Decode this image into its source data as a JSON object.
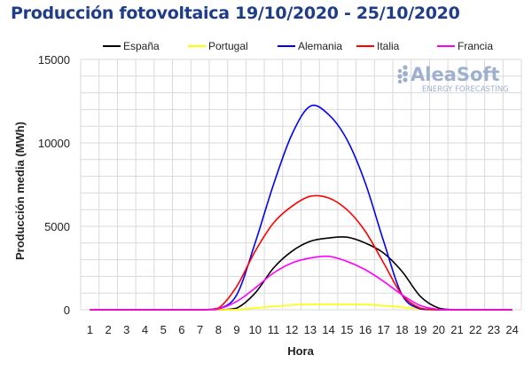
{
  "chart_data": {
    "type": "line",
    "title": "Producción fotovoltaica 19/10/2020 - 25/10/2020",
    "xlabel": "Hora",
    "ylabel": "Producción media (MWh)",
    "x": [
      1,
      2,
      3,
      4,
      5,
      6,
      7,
      8,
      9,
      10,
      11,
      12,
      13,
      14,
      15,
      16,
      17,
      18,
      19,
      20,
      21,
      22,
      23,
      24
    ],
    "ylim": [
      0,
      15000
    ],
    "yticks": [
      0,
      5000,
      10000,
      15000
    ],
    "grid": true,
    "legend": "top",
    "series": [
      {
        "name": "España",
        "color": "#000000",
        "values": [
          0,
          0,
          0,
          0,
          0,
          0,
          0,
          0,
          100,
          1000,
          2500,
          3500,
          4100,
          4300,
          4350,
          4000,
          3400,
          2300,
          800,
          100,
          0,
          0,
          0,
          0
        ]
      },
      {
        "name": "Portugal",
        "color": "#ffff00",
        "values": [
          0,
          0,
          0,
          0,
          0,
          0,
          0,
          0,
          10,
          100,
          200,
          280,
          320,
          330,
          320,
          300,
          250,
          150,
          40,
          0,
          0,
          0,
          0,
          0
        ]
      },
      {
        "name": "Alemania",
        "color": "#0000ff",
        "values": [
          0,
          0,
          0,
          0,
          0,
          0,
          0,
          50,
          900,
          4000,
          7500,
          10500,
          12200,
          11700,
          10200,
          7600,
          4100,
          900,
          50,
          0,
          0,
          0,
          0,
          0
        ]
      },
      {
        "name": "Italia",
        "color": "#ff0000",
        "values": [
          0,
          0,
          0,
          0,
          0,
          0,
          0,
          100,
          1400,
          3500,
          5200,
          6200,
          6800,
          6700,
          6000,
          4700,
          2800,
          900,
          100,
          0,
          0,
          0,
          0,
          0
        ]
      },
      {
        "name": "Francia",
        "color": "#ff00ff",
        "values": [
          0,
          0,
          0,
          0,
          0,
          0,
          0,
          50,
          500,
          1300,
          2200,
          2800,
          3100,
          3200,
          2900,
          2400,
          1700,
          900,
          250,
          20,
          0,
          0,
          0,
          0
        ]
      }
    ]
  },
  "logo": {
    "main": "AleaSoft",
    "sub": "ENERGY FORECASTING",
    "color": "#9fb0cf"
  }
}
